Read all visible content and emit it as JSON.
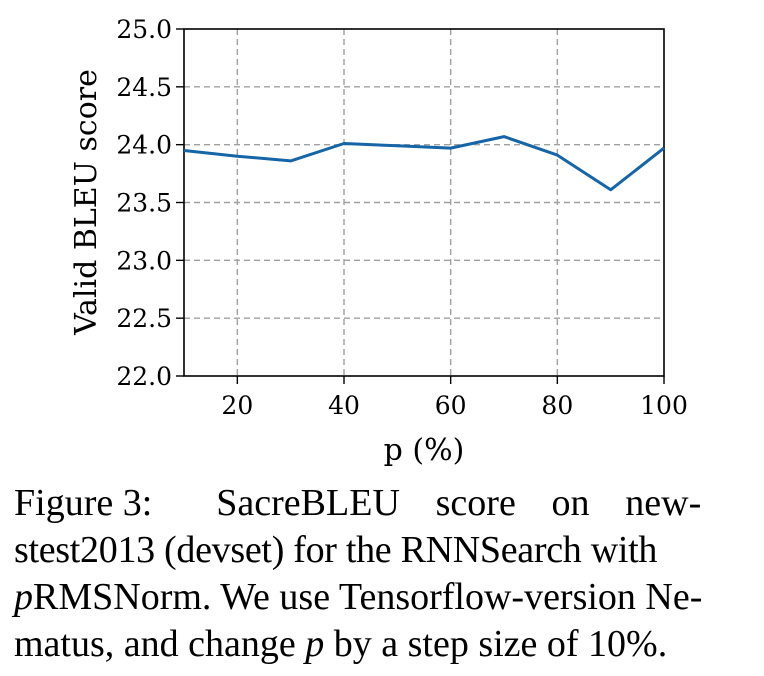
{
  "chart_data": {
    "type": "line",
    "xlabel": "p (%)",
    "ylabel": "Valid BLEU score",
    "xlim": [
      10,
      100
    ],
    "ylim": [
      22.0,
      25.0
    ],
    "x_ticks": [
      20,
      40,
      60,
      80,
      100
    ],
    "y_ticks": [
      "22.0",
      "22.5",
      "23.0",
      "23.5",
      "24.0",
      "24.5",
      "25.0"
    ],
    "grid": true,
    "color": "#1565a7",
    "x": [
      10,
      20,
      30,
      40,
      50,
      60,
      70,
      80,
      90,
      100
    ],
    "values": [
      23.95,
      23.9,
      23.86,
      24.01,
      23.99,
      23.97,
      24.07,
      23.91,
      23.61,
      23.97
    ]
  },
  "caption": {
    "label": "Figure 3:",
    "line1": "SacreBLEU score on new-",
    "line2": "stest2013 (devset) for the RNNSearch with",
    "line3_var": "p",
    "line3_rest": "RMSNorm. We use Tensorflow-version Ne-",
    "line4_a": "matus, and change ",
    "line4_var": "p",
    "line4_b": " by a step size of 10%."
  }
}
